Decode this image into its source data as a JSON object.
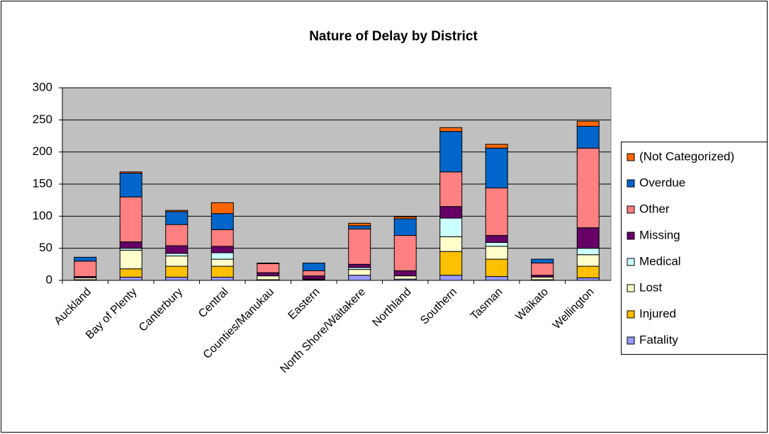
{
  "chart_data": {
    "type": "stacked_bar",
    "title": "Nature of Delay by District",
    "categories": [
      "Auckland",
      "Bay of Plenty",
      "Canterbury",
      "Central",
      "Counties/Manukau",
      "Eastern",
      "North Shore/Waitakere",
      "Northland",
      "Southern",
      "Tasman",
      "Waikato",
      "Wellington"
    ],
    "series": [
      {
        "name": "Fatality",
        "color": "#9999ff",
        "values": [
          1,
          5,
          5,
          5,
          1,
          1,
          8,
          2,
          8,
          6,
          1,
          4
        ]
      },
      {
        "name": "Injured",
        "color": "#ffc000",
        "values": [
          0,
          13,
          17,
          17,
          0,
          0,
          0,
          0,
          37,
          27,
          0,
          18
        ]
      },
      {
        "name": "Lost",
        "color": "#ffffcc",
        "values": [
          3,
          29,
          16,
          11,
          6,
          1,
          9,
          5,
          23,
          20,
          4,
          18
        ]
      },
      {
        "name": "Medical",
        "color": "#ccffff",
        "values": [
          0,
          3,
          4,
          10,
          0,
          0,
          3,
          0,
          29,
          6,
          0,
          10
        ]
      },
      {
        "name": "Missing",
        "color": "#660066",
        "values": [
          2,
          10,
          12,
          10,
          5,
          5,
          5,
          8,
          18,
          11,
          3,
          32
        ]
      },
      {
        "name": "Other",
        "color": "#ff8080",
        "values": [
          24,
          70,
          33,
          26,
          14,
          8,
          55,
          55,
          54,
          74,
          19,
          124
        ]
      },
      {
        "name": "Overdue",
        "color": "#0066cc",
        "values": [
          6,
          37,
          20,
          25,
          0,
          12,
          5,
          26,
          63,
          62,
          6,
          34
        ]
      },
      {
        "name": "(Not Categorized)",
        "color": "#ff6600",
        "values": [
          0,
          2,
          2,
          17,
          1,
          0,
          4,
          3,
          6,
          6,
          0,
          8
        ]
      }
    ],
    "ylim": [
      0,
      300
    ],
    "yticks": [
      0,
      50,
      100,
      150,
      200,
      250,
      300
    ],
    "grid": true,
    "legend": "right"
  }
}
